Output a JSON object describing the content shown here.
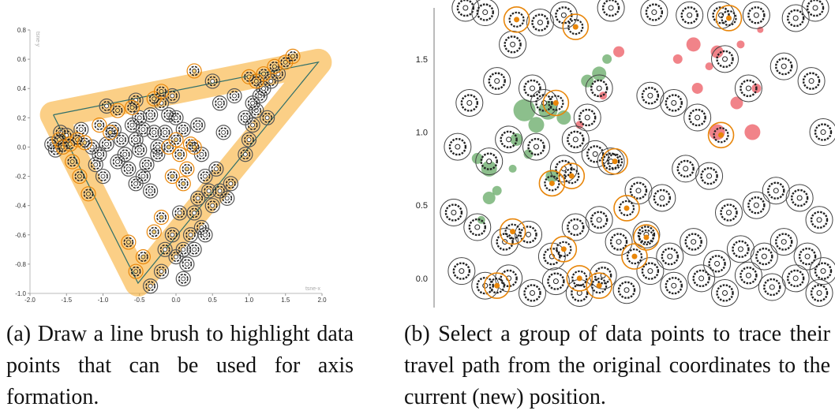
{
  "colors": {
    "brush": "#f7a823",
    "highlight": "#e8860a",
    "ring": "#333333",
    "green": "#2e8b2e",
    "red": "#e8303a",
    "axis_line": "#999999"
  },
  "chart_data": [
    {
      "type": "scatter",
      "panel": "a",
      "title": "",
      "xlabel": "tsne-x",
      "ylabel": "tsne-y",
      "xlim": [
        -2.0,
        2.0
      ],
      "ylim": [
        -1.0,
        0.8
      ],
      "x_ticks": [
        "-2.0",
        "-1.5",
        "-1.0",
        "-0.5",
        "0.0",
        "0.5",
        "1.0",
        "1.5",
        "2.0"
      ],
      "y_ticks": [
        "0.8",
        "0.6",
        "0.4",
        "0.2",
        "0.0",
        "-0.2",
        "-0.4",
        "-0.6",
        "-0.8",
        "-1.0"
      ],
      "line_brush": [
        [
          -1.68,
          0.22
        ],
        [
          1.95,
          0.58
        ],
        [
          -0.52,
          -0.93
        ],
        [
          -1.68,
          0.22
        ]
      ],
      "highlighted_points": [
        [
          -1.6,
          0.05
        ],
        [
          -1.55,
          0.0
        ],
        [
          -1.45,
          0.02
        ],
        [
          -1.35,
          0.05
        ],
        [
          -1.25,
          0.03
        ],
        [
          -1.42,
          -0.1
        ],
        [
          -1.32,
          -0.2
        ],
        [
          -1.2,
          -0.32
        ],
        [
          -1.05,
          0.15
        ],
        [
          -0.8,
          0.25
        ],
        [
          -0.6,
          0.27
        ],
        [
          -0.3,
          0.33
        ],
        [
          -0.2,
          0.38
        ],
        [
          0.25,
          0.52
        ],
        [
          1.0,
          0.48
        ],
        [
          1.2,
          0.5
        ],
        [
          1.35,
          0.55
        ],
        [
          1.5,
          0.58
        ],
        [
          1.6,
          0.62
        ],
        [
          1.1,
          0.45
        ],
        [
          -0.1,
          0.0
        ],
        [
          0.05,
          -0.05
        ],
        [
          0.15,
          -0.15
        ],
        [
          0.1,
          -0.25
        ],
        [
          0.2,
          0.02
        ],
        [
          -0.05,
          -0.2
        ],
        [
          -0.2,
          -0.48
        ],
        [
          -0.3,
          -0.58
        ],
        [
          -0.45,
          -0.75
        ],
        [
          -0.55,
          -0.85
        ],
        [
          -0.65,
          -0.65
        ],
        [
          0.0,
          0.05
        ],
        [
          0.25,
          0.0
        ],
        [
          -0.9,
          0.1
        ]
      ],
      "other_points": [
        [
          -1.7,
          0.02
        ],
        [
          -1.65,
          -0.02
        ],
        [
          -1.58,
          0.1
        ],
        [
          -1.5,
          0.08
        ],
        [
          -1.3,
          0.12
        ],
        [
          -1.15,
          0.0
        ],
        [
          -1.1,
          -0.12
        ],
        [
          -1.05,
          -0.05
        ],
        [
          -0.95,
          0.02
        ],
        [
          -0.85,
          0.12
        ],
        [
          -0.75,
          0.05
        ],
        [
          -0.7,
          -0.05
        ],
        [
          -0.6,
          0.15
        ],
        [
          -0.55,
          0.05
        ],
        [
          -0.5,
          -0.02
        ],
        [
          -0.45,
          0.12
        ],
        [
          -0.4,
          -0.12
        ],
        [
          -0.35,
          0.22
        ],
        [
          -0.3,
          0.1
        ],
        [
          -0.25,
          -0.05
        ],
        [
          -0.5,
          0.2
        ],
        [
          -0.65,
          -0.15
        ],
        [
          -0.55,
          -0.25
        ],
        [
          -0.45,
          -0.2
        ],
        [
          -0.35,
          -0.3
        ],
        [
          -0.25,
          0.0
        ],
        [
          -0.15,
          0.1
        ],
        [
          -0.1,
          0.22
        ],
        [
          0.0,
          0.2
        ],
        [
          0.1,
          0.12
        ],
        [
          0.3,
          0.15
        ],
        [
          0.35,
          -0.05
        ],
        [
          0.4,
          -0.2
        ],
        [
          0.45,
          -0.3
        ],
        [
          0.5,
          -0.4
        ],
        [
          0.3,
          -0.35
        ],
        [
          0.25,
          -0.45
        ],
        [
          0.35,
          -0.55
        ],
        [
          0.2,
          -0.6
        ],
        [
          0.1,
          -0.7
        ],
        [
          0.0,
          -0.75
        ],
        [
          0.15,
          -0.8
        ],
        [
          0.25,
          -0.7
        ],
        [
          -0.05,
          -0.6
        ],
        [
          -0.15,
          -0.7
        ],
        [
          -0.2,
          -0.85
        ],
        [
          0.05,
          -0.45
        ],
        [
          0.4,
          -0.6
        ],
        [
          0.55,
          -0.15
        ],
        [
          0.6,
          -0.3
        ],
        [
          0.7,
          -0.35
        ],
        [
          0.75,
          -0.25
        ],
        [
          0.95,
          -0.05
        ],
        [
          1.0,
          0.05
        ],
        [
          1.05,
          0.15
        ],
        [
          1.1,
          0.25
        ],
        [
          1.15,
          0.35
        ],
        [
          1.05,
          0.3
        ],
        [
          0.95,
          0.2
        ],
        [
          1.2,
          0.4
        ],
        [
          1.3,
          0.45
        ],
        [
          1.4,
          0.5
        ],
        [
          0.5,
          0.45
        ],
        [
          0.6,
          0.3
        ],
        [
          -0.2,
          0.3
        ],
        [
          -0.55,
          0.32
        ],
        [
          -0.95,
          0.28
        ],
        [
          -1.0,
          -0.2
        ],
        [
          -0.8,
          -0.1
        ],
        [
          0.1,
          -0.9
        ],
        [
          -0.35,
          -0.95
        ],
        [
          0.65,
          0.1
        ],
        [
          0.8,
          0.35
        ],
        [
          1.25,
          0.2
        ],
        [
          -0.05,
          0.35
        ]
      ]
    },
    {
      "type": "scatter",
      "panel": "b",
      "title": "",
      "y_ticks": [
        "1.5",
        "1.0",
        "0.5",
        "0.0"
      ],
      "ylim": [
        -0.2,
        1.85
      ],
      "xlim": [
        0,
        10
      ],
      "glyph_points": [
        [
          0.8,
          1.85
        ],
        [
          1.3,
          1.82
        ],
        [
          2.0,
          1.6
        ],
        [
          2.7,
          1.75
        ],
        [
          3.3,
          1.8
        ],
        [
          4.5,
          1.85
        ],
        [
          5.6,
          1.82
        ],
        [
          6.5,
          1.8
        ],
        [
          7.3,
          1.8
        ],
        [
          8.2,
          1.8
        ],
        [
          9.2,
          1.78
        ],
        [
          9.7,
          1.85
        ],
        [
          0.9,
          1.2
        ],
        [
          1.6,
          1.35
        ],
        [
          2.5,
          1.3
        ],
        [
          2.8,
          1.2
        ],
        [
          3.9,
          1.1
        ],
        [
          4.2,
          1.3
        ],
        [
          5.5,
          1.25
        ],
        [
          6.1,
          1.2
        ],
        [
          6.7,
          1.1
        ],
        [
          7.4,
          1.5
        ],
        [
          8.0,
          1.3
        ],
        [
          8.9,
          1.45
        ],
        [
          9.6,
          1.35
        ],
        [
          9.9,
          1.0
        ],
        [
          0.6,
          0.9
        ],
        [
          1.4,
          0.8
        ],
        [
          1.9,
          0.95
        ],
        [
          2.6,
          0.9
        ],
        [
          3.3,
          0.75
        ],
        [
          3.6,
          0.95
        ],
        [
          4.1,
          0.85
        ],
        [
          4.5,
          0.8
        ],
        [
          5.2,
          0.6
        ],
        [
          5.8,
          0.55
        ],
        [
          6.4,
          0.75
        ],
        [
          7.0,
          0.7
        ],
        [
          7.5,
          0.45
        ],
        [
          8.2,
          0.5
        ],
        [
          8.7,
          0.6
        ],
        [
          9.3,
          0.55
        ],
        [
          9.8,
          0.4
        ],
        [
          0.5,
          0.45
        ],
        [
          1.1,
          0.35
        ],
        [
          1.8,
          0.25
        ],
        [
          2.4,
          0.3
        ],
        [
          3.0,
          0.15
        ],
        [
          3.6,
          0.35
        ],
        [
          4.2,
          0.4
        ],
        [
          4.7,
          0.25
        ],
        [
          5.4,
          0.3
        ],
        [
          6.0,
          0.15
        ],
        [
          6.6,
          0.25
        ],
        [
          7.2,
          0.1
        ],
        [
          7.8,
          0.2
        ],
        [
          8.4,
          0.15
        ],
        [
          8.9,
          0.25
        ],
        [
          9.5,
          0.15
        ],
        [
          9.9,
          0.05
        ],
        [
          0.7,
          0.05
        ],
        [
          1.3,
          -0.05
        ],
        [
          1.9,
          0.0
        ],
        [
          2.5,
          -0.1
        ],
        [
          3.1,
          -0.02
        ],
        [
          3.7,
          -0.1
        ],
        [
          4.3,
          0.02
        ],
        [
          4.9,
          -0.08
        ],
        [
          5.5,
          0.05
        ],
        [
          6.1,
          -0.05
        ],
        [
          6.8,
          0.0
        ],
        [
          7.4,
          -0.1
        ],
        [
          8.0,
          0.02
        ],
        [
          8.6,
          -0.06
        ],
        [
          9.2,
          0.0
        ],
        [
          9.8,
          -0.1
        ]
      ],
      "orange_ring_points": [
        [
          2.1,
          1.77
        ],
        [
          3.6,
          1.72
        ],
        [
          7.5,
          1.78
        ],
        [
          3.1,
          1.2
        ],
        [
          3.5,
          0.7
        ],
        [
          2.0,
          0.32
        ],
        [
          3.3,
          0.2
        ],
        [
          4.9,
          0.48
        ],
        [
          5.4,
          0.28
        ],
        [
          7.3,
          0.98
        ],
        [
          3.7,
          0.0
        ],
        [
          4.2,
          -0.05
        ],
        [
          5.1,
          0.15
        ],
        [
          1.6,
          -0.05
        ],
        [
          3.0,
          0.65
        ],
        [
          4.6,
          0.8
        ]
      ],
      "green_bubbles": [
        [
          1.1,
          0.82,
          7
        ],
        [
          1.4,
          0.75,
          10
        ],
        [
          2.3,
          1.15,
          14
        ],
        [
          2.6,
          1.05,
          10
        ],
        [
          2.9,
          1.15,
          12
        ],
        [
          2.1,
          0.95,
          8
        ],
        [
          2.4,
          0.85,
          6
        ],
        [
          3.3,
          1.1,
          9
        ],
        [
          3.9,
          1.35,
          8
        ],
        [
          4.2,
          1.4,
          9
        ],
        [
          1.4,
          0.55,
          8
        ],
        [
          1.6,
          0.6,
          6
        ],
        [
          1.2,
          0.4,
          5
        ],
        [
          2.0,
          0.75,
          5
        ],
        [
          3.0,
          0.7,
          8
        ],
        [
          4.4,
          1.5,
          6
        ]
      ],
      "red_bubbles": [
        [
          6.6,
          1.6,
          9
        ],
        [
          7.2,
          1.55,
          8
        ],
        [
          6.7,
          1.3,
          7
        ],
        [
          7.7,
          1.2,
          8
        ],
        [
          8.2,
          1.3,
          6
        ],
        [
          7.2,
          1.0,
          10
        ],
        [
          8.1,
          1.0,
          10
        ],
        [
          6.2,
          1.5,
          6
        ],
        [
          7.8,
          1.6,
          5
        ],
        [
          7.0,
          1.45,
          5
        ],
        [
          4.7,
          1.55,
          7
        ],
        [
          4.3,
          1.25,
          5
        ],
        [
          3.7,
          1.05,
          5
        ],
        [
          8.3,
          1.7,
          4
        ]
      ]
    }
  ],
  "captions": {
    "a": "(a) Draw a line brush to highlight data points that can be used for axis formation.",
    "b": "(b) Select a group of data points to trace their travel path from the original coordinates to the current (new) position."
  }
}
